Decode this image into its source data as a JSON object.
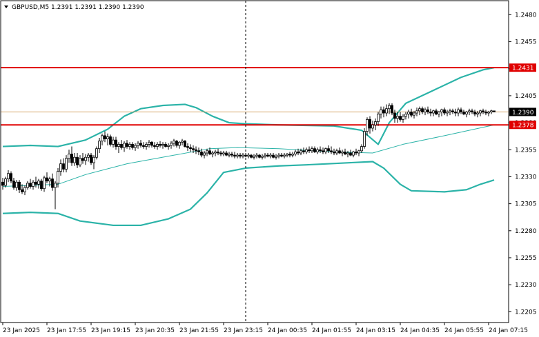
{
  "header": {
    "symbol_line": "GBPUSD,M5  1.2391 1.2391 1.2390 1.2390"
  },
  "chart_data": {
    "type": "candlestick",
    "symbol": "GBPUSD",
    "timeframe": "M5",
    "ohlc_readout": [
      1.2391,
      1.2391,
      1.239,
      1.239
    ],
    "ylim": [
      1.2195,
      1.2493
    ],
    "y_ticks": [
      "1.2480",
      "1.2455",
      "1.2430",
      "1.2405",
      "1.2380",
      "1.2355",
      "1.2330",
      "1.2305",
      "1.2280",
      "1.2255",
      "1.2230",
      "1.2205"
    ],
    "x_ticks": [
      "23 Jan 2025",
      "23 Jan 17:55",
      "23 Jan 19:15",
      "23 Jan 20:35",
      "23 Jan 21:55",
      "23 Jan 23:15",
      "24 Jan 00:35",
      "24 Jan 01:55",
      "24 Jan 03:15",
      "24 Jan 04:35",
      "24 Jan 05:55",
      "24 Jan 07:15"
    ],
    "horizontal_levels": [
      {
        "label": "1.2431",
        "value": 1.2431,
        "color": "#e00000"
      },
      {
        "label": "1.2378",
        "value": 1.2378,
        "color": "#e00000"
      }
    ],
    "current_price": {
      "label": "1.2390",
      "value": 1.239,
      "color": "#d4a46a"
    },
    "crosshair_bar": 88,
    "bollinger_upper": [
      [
        0,
        1.2358
      ],
      [
        10,
        1.2359
      ],
      [
        20,
        1.2358
      ],
      [
        30,
        1.2364
      ],
      [
        38,
        1.2374
      ],
      [
        44,
        1.2386
      ],
      [
        50,
        1.2393
      ],
      [
        58,
        1.2396
      ],
      [
        66,
        1.2397
      ],
      [
        70,
        1.2394
      ],
      [
        76,
        1.2386
      ],
      [
        82,
        1.238
      ],
      [
        88,
        1.2379
      ],
      [
        100,
        1.2378
      ],
      [
        120,
        1.2377
      ],
      [
        130,
        1.2373
      ],
      [
        136,
        1.236
      ],
      [
        140,
        1.238
      ],
      [
        146,
        1.2398
      ],
      [
        156,
        1.241
      ],
      [
        166,
        1.2422
      ],
      [
        174,
        1.2429
      ],
      [
        178,
        1.2431
      ]
    ],
    "bollinger_middle": [
      [
        0,
        1.2321
      ],
      [
        10,
        1.2322
      ],
      [
        20,
        1.2323
      ],
      [
        30,
        1.2332
      ],
      [
        45,
        1.2342
      ],
      [
        60,
        1.2349
      ],
      [
        75,
        1.2356
      ],
      [
        85,
        1.2357
      ],
      [
        100,
        1.2356
      ],
      [
        120,
        1.2353
      ],
      [
        134,
        1.2352
      ],
      [
        145,
        1.236
      ],
      [
        160,
        1.2368
      ],
      [
        178,
        1.2378
      ]
    ],
    "bollinger_lower": [
      [
        0,
        1.2296
      ],
      [
        10,
        1.2297
      ],
      [
        20,
        1.2296
      ],
      [
        28,
        1.2289
      ],
      [
        40,
        1.2285
      ],
      [
        50,
        1.2285
      ],
      [
        60,
        1.2291
      ],
      [
        68,
        1.23
      ],
      [
        74,
        1.2315
      ],
      [
        80,
        1.2334
      ],
      [
        88,
        1.2338
      ],
      [
        100,
        1.234
      ],
      [
        110,
        1.2341
      ],
      [
        126,
        1.2343
      ],
      [
        134,
        1.2344
      ],
      [
        138,
        1.2338
      ],
      [
        144,
        1.2323
      ],
      [
        148,
        1.2317
      ],
      [
        160,
        1.2316
      ],
      [
        168,
        1.2318
      ],
      [
        173,
        1.2323
      ],
      [
        178,
        1.2327
      ]
    ],
    "candles": [
      [
        1.2325,
        1.2329,
        1.2318,
        1.2322
      ],
      [
        1.2322,
        1.233,
        1.232,
        1.2328
      ],
      [
        1.2328,
        1.2336,
        1.2325,
        1.2333
      ],
      [
        1.2333,
        1.2335,
        1.2324,
        1.2326
      ],
      [
        1.2326,
        1.2329,
        1.2318,
        1.232
      ],
      [
        1.232,
        1.2327,
        1.2317,
        1.2325
      ],
      [
        1.2325,
        1.2327,
        1.2315,
        1.2318
      ],
      [
        1.2318,
        1.2323,
        1.2314,
        1.2316
      ],
      [
        1.2316,
        1.2322,
        1.2313,
        1.232
      ],
      [
        1.232,
        1.2326,
        1.2318,
        1.2324
      ],
      [
        1.2324,
        1.2328,
        1.2319,
        1.2321
      ],
      [
        1.2321,
        1.2327,
        1.2318,
        1.2325
      ],
      [
        1.2325,
        1.233,
        1.232,
        1.2323
      ],
      [
        1.2323,
        1.2328,
        1.2319,
        1.2326
      ],
      [
        1.2326,
        1.2328,
        1.2317,
        1.2319
      ],
      [
        1.2319,
        1.2331,
        1.2316,
        1.2329
      ],
      [
        1.2329,
        1.2334,
        1.2324,
        1.2326
      ],
      [
        1.2326,
        1.233,
        1.2321,
        1.2328
      ],
      [
        1.2328,
        1.2333,
        1.2317,
        1.232
      ],
      [
        1.232,
        1.2326,
        1.23,
        1.2324
      ],
      [
        1.2324,
        1.2338,
        1.232,
        1.2335
      ],
      [
        1.2335,
        1.2346,
        1.2331,
        1.2342
      ],
      [
        1.2342,
        1.2347,
        1.2334,
        1.2337
      ],
      [
        1.2337,
        1.235,
        1.2334,
        1.2347
      ],
      [
        1.2347,
        1.2355,
        1.2343,
        1.2351
      ],
      [
        1.2351,
        1.2358,
        1.234,
        1.2343
      ],
      [
        1.2343,
        1.2352,
        1.234,
        1.2348
      ],
      [
        1.2348,
        1.2352,
        1.2338,
        1.2341
      ],
      [
        1.2341,
        1.235,
        1.2339,
        1.2347
      ],
      [
        1.2347,
        1.2352,
        1.2342,
        1.2345
      ],
      [
        1.2345,
        1.2351,
        1.2341,
        1.2348
      ],
      [
        1.2348,
        1.2352,
        1.2344,
        1.235
      ],
      [
        1.235,
        1.2352,
        1.2341,
        1.2343
      ],
      [
        1.2343,
        1.235,
        1.2337,
        1.2348
      ],
      [
        1.2348,
        1.2358,
        1.2346,
        1.2356
      ],
      [
        1.2356,
        1.2366,
        1.2352,
        1.2363
      ],
      [
        1.2363,
        1.237,
        1.2359,
        1.2368
      ],
      [
        1.2368,
        1.2372,
        1.2362,
        1.2365
      ],
      [
        1.2365,
        1.237,
        1.2359,
        1.2367
      ],
      [
        1.2367,
        1.2369,
        1.2358,
        1.236
      ],
      [
        1.236,
        1.2367,
        1.2357,
        1.2364
      ],
      [
        1.2364,
        1.2367,
        1.2355,
        1.2358
      ],
      [
        1.2358,
        1.2362,
        1.2352,
        1.236
      ],
      [
        1.236,
        1.2364,
        1.2355,
        1.2357
      ],
      [
        1.2357,
        1.2363,
        1.2353,
        1.2361
      ],
      [
        1.2361,
        1.2364,
        1.2356,
        1.2358
      ],
      [
        1.2358,
        1.2362,
        1.2355,
        1.236
      ],
      [
        1.236,
        1.2362,
        1.2355,
        1.2357
      ],
      [
        1.2357,
        1.2361,
        1.2354,
        1.2359
      ],
      [
        1.2359,
        1.2363,
        1.2356,
        1.2361
      ],
      [
        1.2361,
        1.2364,
        1.2357,
        1.2359
      ],
      [
        1.2359,
        1.2362,
        1.2356,
        1.2358
      ],
      [
        1.2358,
        1.2362,
        1.2355,
        1.236
      ],
      [
        1.236,
        1.2364,
        1.2357,
        1.2362
      ],
      [
        1.2362,
        1.2363,
        1.2357,
        1.2359
      ],
      [
        1.2359,
        1.2362,
        1.2356,
        1.2358
      ],
      [
        1.2358,
        1.2362,
        1.2355,
        1.236
      ],
      [
        1.236,
        1.2363,
        1.2357,
        1.2359
      ],
      [
        1.2359,
        1.2362,
        1.2356,
        1.236
      ],
      [
        1.236,
        1.2362,
        1.2357,
        1.2358
      ],
      [
        1.2358,
        1.2361,
        1.2355,
        1.2359
      ],
      [
        1.2359,
        1.2363,
        1.2356,
        1.2361
      ],
      [
        1.2361,
        1.2365,
        1.2358,
        1.2363
      ],
      [
        1.2363,
        1.2364,
        1.2357,
        1.2359
      ],
      [
        1.2359,
        1.2363,
        1.2356,
        1.2362
      ],
      [
        1.2362,
        1.2365,
        1.2359,
        1.2363
      ],
      [
        1.2363,
        1.2364,
        1.2357,
        1.2358
      ],
      [
        1.2358,
        1.2361,
        1.2354,
        1.2357
      ],
      [
        1.2357,
        1.236,
        1.2353,
        1.2356
      ],
      [
        1.2356,
        1.2359,
        1.2352,
        1.2355
      ],
      [
        1.2355,
        1.2358,
        1.2351,
        1.2354
      ],
      [
        1.2354,
        1.2357,
        1.235,
        1.2353
      ],
      [
        1.2353,
        1.2356,
        1.2348,
        1.235
      ],
      [
        1.235,
        1.2354,
        1.2347,
        1.2352
      ],
      [
        1.2352,
        1.2356,
        1.2349,
        1.2354
      ],
      [
        1.2354,
        1.2357,
        1.235,
        1.2351
      ],
      [
        1.2351,
        1.2354,
        1.2348,
        1.2352
      ],
      [
        1.2352,
        1.2355,
        1.2349,
        1.2353
      ],
      [
        1.2353,
        1.2356,
        1.235,
        1.2352
      ],
      [
        1.2352,
        1.2354,
        1.2349,
        1.2351
      ],
      [
        1.2351,
        1.2354,
        1.2349,
        1.2352
      ],
      [
        1.2352,
        1.2354,
        1.2349,
        1.235
      ],
      [
        1.235,
        1.2353,
        1.2348,
        1.2351
      ],
      [
        1.2351,
        1.2353,
        1.2348,
        1.235
      ],
      [
        1.235,
        1.2353,
        1.2347,
        1.2349
      ],
      [
        1.2349,
        1.2352,
        1.2347,
        1.235
      ],
      [
        1.235,
        1.2352,
        1.2347,
        1.2349
      ],
      [
        1.2349,
        1.2352,
        1.2347,
        1.235
      ],
      [
        1.235,
        1.2352,
        1.2348,
        1.2349
      ],
      [
        1.2349,
        1.2352,
        1.2347,
        1.235
      ],
      [
        1.235,
        1.2351,
        1.2347,
        1.2348
      ],
      [
        1.2348,
        1.2351,
        1.2346,
        1.2349
      ],
      [
        1.2349,
        1.2352,
        1.2347,
        1.235
      ],
      [
        1.235,
        1.2351,
        1.2347,
        1.2348
      ],
      [
        1.2348,
        1.2351,
        1.2346,
        1.2349
      ],
      [
        1.2349,
        1.2352,
        1.2347,
        1.235
      ],
      [
        1.235,
        1.2352,
        1.2348,
        1.2349
      ],
      [
        1.2349,
        1.2352,
        1.2347,
        1.235
      ],
      [
        1.235,
        1.2352,
        1.2347,
        1.2348
      ],
      [
        1.2348,
        1.2351,
        1.2346,
        1.2349
      ],
      [
        1.2349,
        1.2352,
        1.2347,
        1.235
      ],
      [
        1.235,
        1.2352,
        1.2348,
        1.2349
      ],
      [
        1.2349,
        1.2352,
        1.2347,
        1.235
      ],
      [
        1.235,
        1.2352,
        1.2348,
        1.2351
      ],
      [
        1.2351,
        1.2353,
        1.2348,
        1.235
      ],
      [
        1.235,
        1.2353,
        1.2348,
        1.2351
      ],
      [
        1.2351,
        1.2355,
        1.2349,
        1.2353
      ],
      [
        1.2353,
        1.2356,
        1.235,
        1.2352
      ],
      [
        1.2352,
        1.2356,
        1.235,
        1.2354
      ],
      [
        1.2354,
        1.2357,
        1.2351,
        1.2353
      ],
      [
        1.2353,
        1.2357,
        1.2351,
        1.2355
      ],
      [
        1.2355,
        1.2358,
        1.2352,
        1.2354
      ],
      [
        1.2354,
        1.2358,
        1.2352,
        1.2356
      ],
      [
        1.2356,
        1.2358,
        1.2352,
        1.2353
      ],
      [
        1.2353,
        1.2357,
        1.2351,
        1.2355
      ],
      [
        1.2355,
        1.2358,
        1.2352,
        1.2354
      ],
      [
        1.2354,
        1.2357,
        1.2351,
        1.2353
      ],
      [
        1.2353,
        1.2357,
        1.2351,
        1.2356
      ],
      [
        1.2356,
        1.2359,
        1.2352,
        1.2354
      ],
      [
        1.2354,
        1.2358,
        1.2351,
        1.2353
      ],
      [
        1.2353,
        1.2356,
        1.235,
        1.2352
      ],
      [
        1.2352,
        1.2356,
        1.235,
        1.2354
      ],
      [
        1.2354,
        1.2357,
        1.2351,
        1.2352
      ],
      [
        1.2352,
        1.2355,
        1.2349,
        1.2353
      ],
      [
        1.2353,
        1.2356,
        1.235,
        1.2351
      ],
      [
        1.2351,
        1.2354,
        1.2348,
        1.2352
      ],
      [
        1.2352,
        1.2355,
        1.2349,
        1.235
      ],
      [
        1.235,
        1.2354,
        1.2348,
        1.2353
      ],
      [
        1.2353,
        1.2356,
        1.235,
        1.2352
      ],
      [
        1.2352,
        1.2355,
        1.2349,
        1.2354
      ],
      [
        1.2354,
        1.236,
        1.2352,
        1.2358
      ],
      [
        1.2358,
        1.2375,
        1.2356,
        1.2372
      ],
      [
        1.2372,
        1.2385,
        1.2368,
        1.2383
      ],
      [
        1.2383,
        1.2386,
        1.237,
        1.2375
      ],
      [
        1.2375,
        1.2382,
        1.2372,
        1.2378
      ],
      [
        1.2378,
        1.2384,
        1.2373,
        1.2381
      ],
      [
        1.2381,
        1.239,
        1.2377,
        1.2388
      ],
      [
        1.2388,
        1.2395,
        1.2384,
        1.2392
      ],
      [
        1.2392,
        1.2395,
        1.2385,
        1.2389
      ],
      [
        1.2389,
        1.2397,
        1.2386,
        1.2393
      ],
      [
        1.2393,
        1.2398,
        1.2388,
        1.2396
      ],
      [
        1.2396,
        1.2398,
        1.2387,
        1.2389
      ],
      [
        1.2389,
        1.2392,
        1.238,
        1.2384
      ],
      [
        1.2384,
        1.239,
        1.238,
        1.2386
      ],
      [
        1.2386,
        1.239,
        1.2381,
        1.2383
      ],
      [
        1.2383,
        1.2388,
        1.238,
        1.2386
      ],
      [
        1.2386,
        1.239,
        1.2383,
        1.2388
      ],
      [
        1.2388,
        1.2392,
        1.2384,
        1.239
      ],
      [
        1.239,
        1.2393,
        1.2385,
        1.2387
      ],
      [
        1.2387,
        1.2391,
        1.2384,
        1.2389
      ],
      [
        1.2389,
        1.2394,
        1.2386,
        1.2391
      ],
      [
        1.2391,
        1.2395,
        1.2387,
        1.2393
      ],
      [
        1.2393,
        1.2395,
        1.2388,
        1.239
      ],
      [
        1.239,
        1.2394,
        1.2387,
        1.2392
      ],
      [
        1.2392,
        1.2395,
        1.2388,
        1.239
      ],
      [
        1.239,
        1.2393,
        1.2386,
        1.2389
      ],
      [
        1.2389,
        1.2392,
        1.2386,
        1.2391
      ],
      [
        1.2391,
        1.2393,
        1.2387,
        1.2388
      ],
      [
        1.2388,
        1.2391,
        1.2385,
        1.239
      ],
      [
        1.239,
        1.2393,
        1.2386,
        1.2392
      ],
      [
        1.2392,
        1.2394,
        1.2387,
        1.2389
      ],
      [
        1.2389,
        1.2392,
        1.2386,
        1.239
      ],
      [
        1.239,
        1.2393,
        1.2387,
        1.2391
      ],
      [
        1.2391,
        1.2393,
        1.2388,
        1.239
      ],
      [
        1.239,
        1.2393,
        1.2386,
        1.2389
      ],
      [
        1.2389,
        1.2394,
        1.2386,
        1.2392
      ],
      [
        1.2392,
        1.2394,
        1.2388,
        1.239
      ],
      [
        1.239,
        1.2392,
        1.2387,
        1.2388
      ],
      [
        1.2388,
        1.2391,
        1.2385,
        1.239
      ],
      [
        1.239,
        1.2393,
        1.2387,
        1.2391
      ],
      [
        1.2391,
        1.2393,
        1.2388,
        1.239
      ],
      [
        1.239,
        1.2392,
        1.2386,
        1.2388
      ],
      [
        1.2388,
        1.2391,
        1.2385,
        1.2389
      ],
      [
        1.2389,
        1.2392,
        1.2386,
        1.2391
      ],
      [
        1.2391,
        1.2393,
        1.2388,
        1.239
      ],
      [
        1.239,
        1.2392,
        1.2387,
        1.2389
      ],
      [
        1.2389,
        1.2391,
        1.2386,
        1.239
      ],
      [
        1.239,
        1.2392,
        1.2388,
        1.2391
      ],
      [
        1.2391,
        1.2391,
        1.239,
        1.239
      ]
    ]
  }
}
